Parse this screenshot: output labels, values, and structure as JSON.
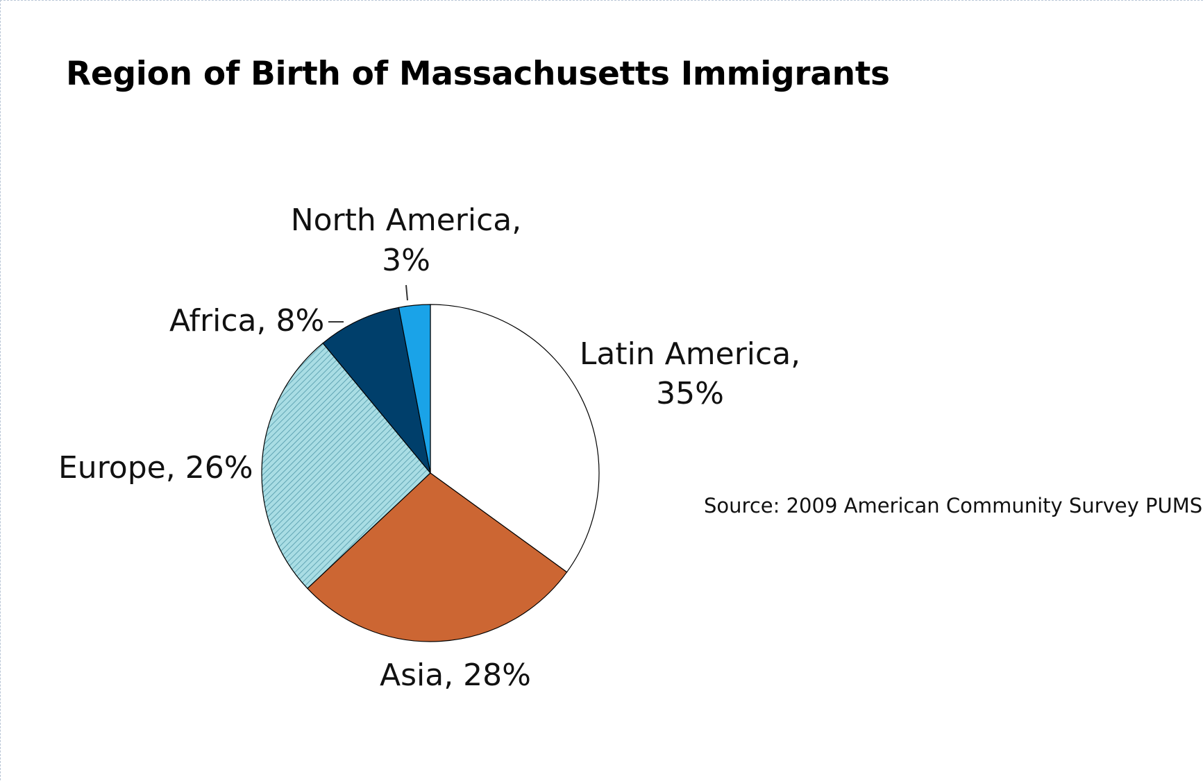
{
  "chart_data": {
    "type": "pie",
    "title": "Region of Birth of Massachusetts Immigrants",
    "source": "Source: 2009 American Community Survey PUMS",
    "slices": [
      {
        "label": "Latin America",
        "value": 35,
        "label_lines": [
          "Latin America,",
          "35%"
        ],
        "color": "#ffffff",
        "pattern": "none"
      },
      {
        "label": "Asia",
        "value": 28,
        "label_lines": [
          "Asia, 28%"
        ],
        "color": "#cc6633",
        "pattern": "none"
      },
      {
        "label": "Europe",
        "value": 26,
        "label_lines": [
          "Europe, 26%"
        ],
        "color": "#a9dde4",
        "pattern": "diagonal-stripes"
      },
      {
        "label": "Africa",
        "value": 8,
        "label_lines": [
          "Africa, 8%"
        ],
        "color": "#003f6b",
        "pattern": "none"
      },
      {
        "label": "North America",
        "value": 3,
        "label_lines": [
          "North America,",
          "3%"
        ],
        "color": "#1aa3e8",
        "pattern": "none"
      }
    ],
    "start_angle_deg": 0,
    "direction": "clockwise",
    "legend": "none",
    "data_labels": "outside"
  }
}
